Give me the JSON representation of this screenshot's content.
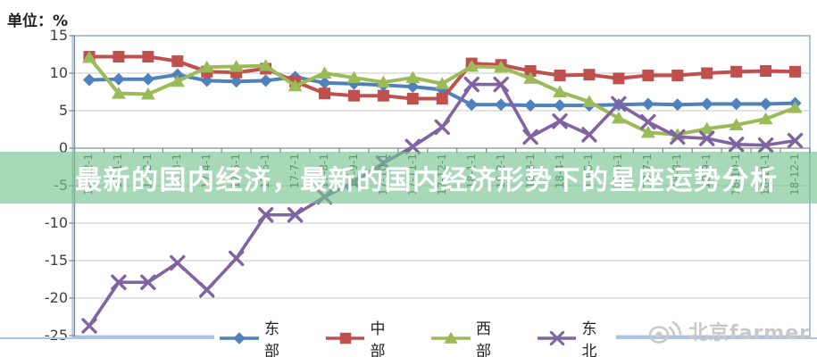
{
  "unit_label": "单位：%",
  "banner": {
    "title": "最新的国内经济，最新的国内经济形势下的星座运势分析"
  },
  "watermark": {
    "icon": "weibo-icon",
    "text": "北京farmer"
  },
  "colors": {
    "grid": "#c9c9c9",
    "axis": "#8a8a8a",
    "plot_border": "#a9c4e2",
    "banner_bg": "rgba(120,195,145,0.65)"
  },
  "chart_data": {
    "type": "line",
    "title": "",
    "xlabel": "",
    "ylabel": "单位：%",
    "ylim": [
      -25,
      15
    ],
    "yticks": [
      15,
      10,
      5,
      0,
      -5,
      -10,
      -15,
      -20,
      -25
    ],
    "grid": true,
    "legend_position": "bottom",
    "categories": [
      "16-12-1",
      "17-1-1",
      "17-2-1",
      "17-3-1",
      "17-4-1",
      "17-5-1",
      "17-6-1",
      "17-7-1",
      "17-8-1",
      "17-9-1",
      "17-10-1",
      "17-11-1",
      "17-12-1",
      "18-1-1",
      "18-2-1",
      "18-3-1",
      "18-4-1",
      "18-5-1",
      "18-6-1",
      "18-7-1",
      "18-8-1",
      "18-9-1",
      "18-10-1",
      "18-11-1",
      "18-12-1"
    ],
    "series": [
      {
        "key": "east",
        "name": "东部",
        "color": "#4f81bd",
        "marker": "diamond",
        "values": [
          9.1,
          9.2,
          9.2,
          9.8,
          9.0,
          8.9,
          9.0,
          9.5,
          8.7,
          8.6,
          8.4,
          8.2,
          7.8,
          5.8,
          5.8,
          5.7,
          5.7,
          5.7,
          5.8,
          5.9,
          5.8,
          5.9,
          5.9,
          5.9,
          6.0
        ]
      },
      {
        "key": "central",
        "name": "中部",
        "color": "#c0504d",
        "marker": "square",
        "values": [
          12.2,
          12.2,
          12.2,
          11.6,
          10.2,
          10.1,
          10.6,
          8.9,
          7.3,
          7.0,
          7.0,
          6.6,
          6.6,
          11.3,
          11.1,
          10.3,
          9.7,
          9.8,
          9.3,
          9.7,
          9.7,
          10.0,
          10.2,
          10.3,
          10.2
        ]
      },
      {
        "key": "west",
        "name": "西部",
        "color": "#9bbb59",
        "marker": "triangle",
        "values": [
          12.1,
          7.3,
          7.2,
          8.9,
          10.8,
          10.9,
          11.0,
          8.3,
          10.0,
          9.4,
          8.8,
          9.4,
          8.6,
          10.9,
          10.8,
          9.3,
          7.5,
          6.2,
          4.0,
          2.1,
          1.8,
          2.6,
          3.1,
          3.9,
          5.4
        ]
      },
      {
        "key": "northeast",
        "name": "东北",
        "color": "#8064a2",
        "marker": "x",
        "values": [
          -23.7,
          -17.9,
          -17.9,
          -15.3,
          -18.9,
          -14.7,
          -8.9,
          -8.9,
          -6.5,
          -4.5,
          -2.0,
          0.2,
          2.8,
          8.5,
          8.5,
          1.5,
          3.6,
          1.8,
          5.9,
          3.5,
          1.5,
          1.3,
          0.5,
          0.4,
          1.0
        ]
      }
    ]
  }
}
